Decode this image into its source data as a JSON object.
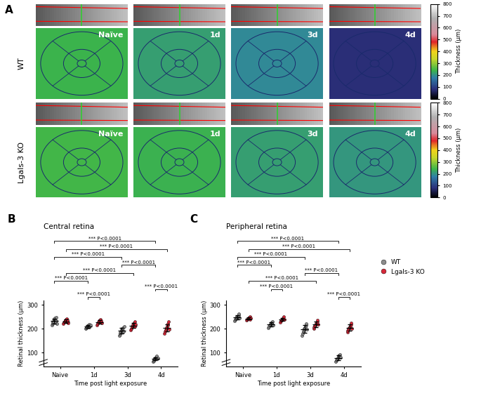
{
  "figure_panel": {
    "panel_label": "A",
    "rows": [
      {
        "label": "WT",
        "maps": [
          {
            "label": "Naïve",
            "thickness": 240
          },
          {
            "label": "1d",
            "thickness": 215
          },
          {
            "label": "3d",
            "thickness": 190
          },
          {
            "label": "4d",
            "thickness": 80
          }
        ]
      },
      {
        "label": "Lgals-3 KO",
        "maps": [
          {
            "label": "Naïve",
            "thickness": 245
          },
          {
            "label": "1d",
            "thickness": 235
          },
          {
            "label": "3d",
            "thickness": 215
          },
          {
            "label": "4d",
            "thickness": 205
          }
        ]
      }
    ],
    "colorbar": {
      "label": "Thickness (µm)",
      "range": [
        0,
        800
      ],
      "ticks": [
        0,
        100,
        200,
        300,
        400,
        500,
        600,
        700,
        800
      ]
    }
  },
  "chart_data": [
    {
      "type": "scatter",
      "panel_label": "B",
      "title": "Central retina",
      "x_label": "Time post light exposure",
      "y_label": "Retinal thickness (µm)",
      "categories": [
        "Naive",
        "1d",
        "3d",
        "4d"
      ],
      "ylim": [
        40,
        320
      ],
      "yticks": [
        100,
        200,
        300
      ],
      "series": [
        {
          "name": "WT",
          "color": "#8c8c8c",
          "values": [
            [
              215,
              222,
              228,
              231,
              235,
              238,
              240,
              245,
              226,
              233,
              248,
              220
            ],
            [
              200,
              205,
              208,
              210,
              212,
              215,
              218,
              206,
              211,
              214
            ],
            [
              170,
              178,
              183,
              188,
              192,
              196,
              200,
              205,
              185,
              190,
              210
            ],
            [
              62,
              66,
              70,
              72,
              75,
              78,
              80,
              84,
              74,
              77
            ]
          ]
        },
        {
          "name": "Lgals-3 KO",
          "color": "#d62839",
          "values": [
            [
              220,
              226,
              230,
              233,
              236,
              240,
              243,
              228,
              235,
              225
            ],
            [
              215,
              222,
              226,
              229,
              232,
              236,
              240,
              228,
              233,
              225
            ],
            [
              195,
              202,
              208,
              212,
              216,
              220,
              225,
              230,
              210,
              218
            ],
            [
              180,
              188,
              195,
              200,
              205,
              210,
              215,
              222,
              230,
              198
            ]
          ]
        }
      ],
      "comparisons": [
        {
          "from": [
            "WT",
            "Naive"
          ],
          "to": [
            "WT",
            "4d"
          ],
          "label": "*** P<0.0001"
        },
        {
          "from": [
            "Lgals-3 KO",
            "Naive"
          ],
          "to": [
            "Lgals-3 KO",
            "4d"
          ],
          "label": "*** P<0.0001"
        },
        {
          "from": [
            "WT",
            "Naive"
          ],
          "to": [
            "WT",
            "3d"
          ],
          "label": "*** P<0.0001"
        },
        {
          "from": [
            "WT",
            "3d"
          ],
          "to": [
            "WT",
            "4d"
          ],
          "label": "*** P<0.0001"
        },
        {
          "from": [
            "Lgals-3 KO",
            "Naive"
          ],
          "to": [
            "Lgals-3 KO",
            "3d"
          ],
          "label": "*** P<0.0001"
        },
        {
          "from": [
            "WT",
            "Naive"
          ],
          "to": [
            "WT",
            "1d"
          ],
          "label": "*** P<0.0001"
        },
        {
          "from": [
            "WT",
            "4d"
          ],
          "to": [
            "Lgals-3 KO",
            "4d"
          ],
          "label": "*** P<0.0001"
        },
        {
          "from": [
            "WT",
            "1d"
          ],
          "to": [
            "Lgals-3 KO",
            "1d"
          ],
          "label": "*** P<0.0001"
        }
      ]
    },
    {
      "type": "scatter",
      "panel_label": "C",
      "title": "Peripheral retina",
      "x_label": "Time post light exposure",
      "y_label": "Retinal thickness (µm)",
      "categories": [
        "Naive",
        "1d",
        "3d",
        "4d"
      ],
      "ylim": [
        40,
        320
      ],
      "yticks": [
        100,
        200,
        300
      ],
      "legend": "right",
      "series": [
        {
          "name": "WT",
          "color": "#8c8c8c",
          "values": [
            [
              232,
              238,
              242,
              246,
              250,
              252,
              255,
              258,
              262,
              245
            ],
            [
              205,
              210,
              214,
              218,
              220,
              223,
              226,
              230,
              216
            ],
            [
              170,
              180,
              188,
              195,
              200,
              205,
              210,
              215,
              222,
              198
            ],
            [
              62,
              68,
              72,
              76,
              80,
              84,
              88,
              92,
              78
            ]
          ]
        },
        {
          "name": "Lgals-3 KO",
          "color": "#d62839",
          "values": [
            [
              235,
              238,
              242,
              245,
              248,
              250,
              240,
              244
            ],
            [
              228,
              233,
              236,
              240,
              243,
              246,
              250,
              238
            ],
            [
              200,
              206,
              212,
              216,
              220,
              225,
              230,
              235,
              218
            ],
            [
              185,
              192,
              198,
              204,
              208,
              212,
              218,
              225,
              200
            ]
          ]
        }
      ],
      "comparisons": [
        {
          "from": [
            "WT",
            "Naive"
          ],
          "to": [
            "WT",
            "4d"
          ],
          "label": "*** P<0.0001"
        },
        {
          "from": [
            "Lgals-3 KO",
            "Naive"
          ],
          "to": [
            "Lgals-3 KO",
            "4d"
          ],
          "label": "*** P<0.0001"
        },
        {
          "from": [
            "WT",
            "Naive"
          ],
          "to": [
            "WT",
            "3d"
          ],
          "label": "*** P<0.0001"
        },
        {
          "from": [
            "WT",
            "Naive"
          ],
          "to": [
            "WT",
            "1d"
          ],
          "label": "*** P<0.0001"
        },
        {
          "from": [
            "WT",
            "3d"
          ],
          "to": [
            "WT",
            "4d"
          ],
          "label": "*** P<0.0001"
        },
        {
          "from": [
            "Lgals-3 KO",
            "Naive"
          ],
          "to": [
            "Lgals-3 KO",
            "3d"
          ],
          "label": "*** P<0.0001"
        },
        {
          "from": [
            "WT",
            "1d"
          ],
          "to": [
            "Lgals-3 KO",
            "1d"
          ],
          "label": "*** P<0.0001"
        },
        {
          "from": [
            "WT",
            "4d"
          ],
          "to": [
            "Lgals-3 KO",
            "4d"
          ],
          "label": "*** P<0.0001"
        }
      ]
    }
  ]
}
